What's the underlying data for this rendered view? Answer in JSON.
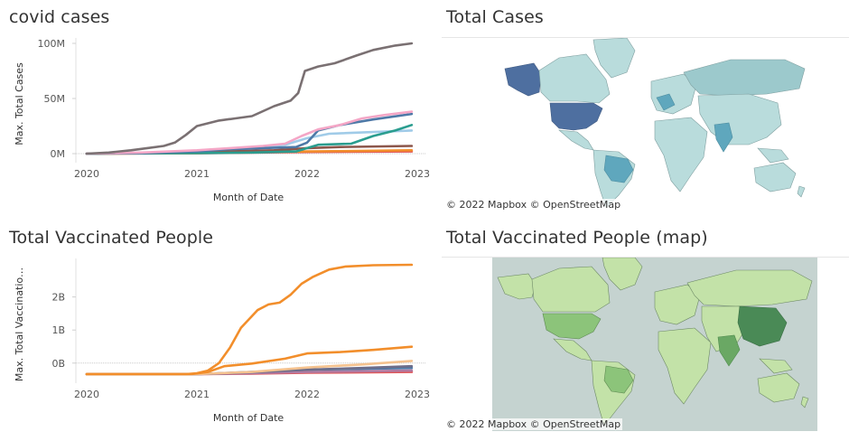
{
  "panels": {
    "cases_title": "covid cases",
    "map1_title": "Total Cases",
    "vacc_title": "Total Vaccinated People",
    "map2_title": "Total Vaccinated People (map)"
  },
  "map_attribution": "© 2022 Mapbox © OpenStreetMap",
  "colors": {
    "map1_ocean": "#ffffff",
    "map1_land": "#b9dcdc",
    "map1_high": "#4e6fa0",
    "map1_mid": "#5fa7bd",
    "map2_ocean": "#c5d3d0",
    "map2_land": "#c3e2a8",
    "map2_high": "#4a8a56",
    "map2_mid": "#8cc47a"
  },
  "chart_data": [
    {
      "type": "line",
      "title": "covid cases",
      "xlabel": "Month of Date",
      "ylabel": "Max. Total Cases",
      "x_ticks": [
        "2020",
        "2021",
        "2022",
        "2023"
      ],
      "y_ticks": [
        "0M",
        "50M",
        "100M"
      ],
      "x_range": [
        2020,
        2023
      ],
      "ylim": [
        0,
        100
      ],
      "series": [
        {
          "color": "#7a7072",
          "x": [
            2020.0,
            2020.2,
            2020.4,
            2020.55,
            2020.7,
            2020.8,
            2020.9,
            2021.0,
            2021.2,
            2021.35,
            2021.5,
            2021.7,
            2021.85,
            2021.92,
            2021.98,
            2022.1,
            2022.25,
            2022.45,
            2022.6,
            2022.8,
            2022.95
          ],
          "y": [
            0,
            1,
            3,
            5,
            7,
            10,
            17,
            25,
            30,
            32,
            34,
            43,
            48,
            55,
            75,
            79,
            82,
            89,
            94,
            98,
            100
          ]
        },
        {
          "color": "#f4a6c6",
          "x": [
            2020.0,
            2020.5,
            2021.0,
            2021.3,
            2021.6,
            2021.8,
            2021.95,
            2022.1,
            2022.3,
            2022.5,
            2022.7,
            2022.95
          ],
          "y": [
            0,
            1,
            3,
            5,
            7,
            9,
            16,
            22,
            26,
            32,
            35,
            38
          ]
        },
        {
          "color": "#4e79a7",
          "x": [
            2020.0,
            2020.5,
            2021.0,
            2021.3,
            2021.6,
            2021.9,
            2022.0,
            2022.1,
            2022.3,
            2022.6,
            2022.95
          ],
          "y": [
            0,
            0.5,
            2,
            4,
            5,
            6,
            10,
            21,
            26,
            31,
            36
          ]
        },
        {
          "color": "#2a9d8f",
          "x": [
            2020.0,
            2021.0,
            2021.5,
            2021.9,
            2022.0,
            2022.1,
            2022.4,
            2022.6,
            2022.8,
            2022.95
          ],
          "y": [
            0,
            0.5,
            1,
            2,
            5,
            8,
            9,
            16,
            21,
            26
          ]
        },
        {
          "color": "#8c564b",
          "x": [
            2020.0,
            2020.8,
            2021.3,
            2021.7,
            2022.0,
            2022.3,
            2022.95
          ],
          "y": [
            0,
            1,
            2,
            3,
            5,
            6,
            7
          ]
        },
        {
          "color": "#a0cbe8",
          "x": [
            2020.0,
            2020.8,
            2021.3,
            2021.8,
            2022.0,
            2022.2,
            2022.95
          ],
          "y": [
            0,
            1,
            3,
            8,
            14,
            18,
            21
          ]
        },
        {
          "color": "#f28e2b",
          "x": [
            2020.0,
            2021.0,
            2022.0,
            2022.95
          ],
          "y": [
            0,
            0.5,
            2,
            3
          ]
        },
        {
          "color": "#e15759",
          "x": [
            2020.0,
            2021.0,
            2022.0,
            2022.95
          ],
          "y": [
            0,
            0.3,
            1.5,
            2
          ]
        }
      ]
    },
    {
      "type": "line",
      "title": "Total Vaccinated People",
      "xlabel": "Month of Date",
      "ylabel": "Max. Total Vaccinatio…",
      "x_ticks": [
        "2020",
        "2021",
        "2022",
        "2023"
      ],
      "y_ticks": [
        "0B",
        "1B",
        "2B"
      ],
      "x_range": [
        2020,
        2023
      ],
      "ylim": [
        0,
        2.5
      ],
      "series": [
        {
          "color": "#f28e2b",
          "x": [
            2020.0,
            2020.9,
            2021.0,
            2021.1,
            2021.2,
            2021.3,
            2021.4,
            2021.55,
            2021.65,
            2021.75,
            2021.85,
            2021.95,
            2022.05,
            2022.2,
            2022.35,
            2022.6,
            2022.95
          ],
          "y": [
            0,
            0,
            0.02,
            0.08,
            0.25,
            0.6,
            1.05,
            1.45,
            1.58,
            1.62,
            1.8,
            2.05,
            2.2,
            2.37,
            2.44,
            2.47,
            2.48
          ]
        },
        {
          "color": "#f28e2b",
          "x": [
            2020.0,
            2020.95,
            2021.1,
            2021.25,
            2021.5,
            2021.8,
            2022.0,
            2022.3,
            2022.6,
            2022.95
          ],
          "y": [
            0,
            0,
            0.05,
            0.18,
            0.24,
            0.35,
            0.47,
            0.5,
            0.55,
            0.62
          ]
        },
        {
          "color": "#f4c28f",
          "x": [
            2020.0,
            2021.0,
            2021.5,
            2022.0,
            2022.5,
            2022.95
          ],
          "y": [
            0,
            0,
            0.05,
            0.15,
            0.22,
            0.3
          ]
        },
        {
          "color": "#6e6e8a",
          "x": [
            2020.0,
            2021.0,
            2021.5,
            2022.0,
            2022.5,
            2022.95
          ],
          "y": [
            0,
            0,
            0.04,
            0.1,
            0.14,
            0.18
          ]
        },
        {
          "color": "#4e79a7",
          "x": [
            2020.0,
            2021.0,
            2021.5,
            2022.0,
            2022.95
          ],
          "y": [
            0,
            0,
            0.05,
            0.1,
            0.14
          ]
        },
        {
          "color": "#b07aa1",
          "x": [
            2020.0,
            2021.0,
            2021.5,
            2022.0,
            2022.95
          ],
          "y": [
            0,
            0,
            0.02,
            0.05,
            0.08
          ]
        },
        {
          "color": "#e15759",
          "x": [
            2020.0,
            2021.0,
            2021.5,
            2022.0,
            2022.95
          ],
          "y": [
            0,
            0,
            0.01,
            0.03,
            0.05
          ]
        }
      ]
    }
  ]
}
